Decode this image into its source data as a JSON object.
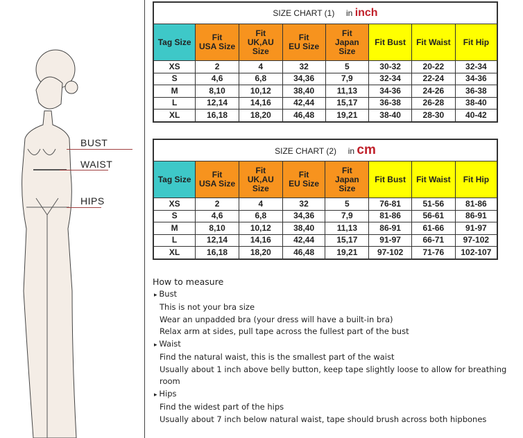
{
  "figure": {
    "labels": {
      "bust": "BUST",
      "waist": "WAIST",
      "hips": "HIPS"
    }
  },
  "chart1": {
    "title": "SIZE CHART (1)",
    "unit_prefix": "in",
    "unit": "inch",
    "headers": [
      "Tag Size",
      "Fit\nUSA Size",
      "Fit\nUK,AU\nSize",
      "Fit\nEU Size",
      "Fit\nJapan\nSize",
      "Fit Bust",
      "Fit Waist",
      "Fit Hip"
    ],
    "rows": [
      [
        "XS",
        "2",
        "4",
        "32",
        "5",
        "30-32",
        "20-22",
        "32-34"
      ],
      [
        "S",
        "4,6",
        "6,8",
        "34,36",
        "7,9",
        "32-34",
        "22-24",
        "34-36"
      ],
      [
        "M",
        "8,10",
        "10,12",
        "38,40",
        "11,13",
        "34-36",
        "24-26",
        "36-38"
      ],
      [
        "L",
        "12,14",
        "14,16",
        "42,44",
        "15,17",
        "36-38",
        "26-28",
        "38-40"
      ],
      [
        "XL",
        "16,18",
        "18,20",
        "46,48",
        "19,21",
        "38-40",
        "28-30",
        "40-42"
      ]
    ]
  },
  "chart2": {
    "title": "SIZE CHART (2)",
    "unit_prefix": "in",
    "unit": "cm",
    "headers": [
      "Tag Size",
      "Fit\nUSA Size",
      "Fit\nUK,AU\nSize",
      "Fit\nEU Size",
      "Fit\nJapan\nSize",
      "Fit Bust",
      "Fit Waist",
      "Fit Hip"
    ],
    "rows": [
      [
        "XS",
        "2",
        "4",
        "32",
        "5",
        "76-81",
        "51-56",
        "81-86"
      ],
      [
        "S",
        "4,6",
        "6,8",
        "34,36",
        "7,9",
        "81-86",
        "56-61",
        "86-91"
      ],
      [
        "M",
        "8,10",
        "10,12",
        "38,40",
        "11,13",
        "86-91",
        "61-66",
        "91-97"
      ],
      [
        "L",
        "12,14",
        "14,16",
        "42,44",
        "15,17",
        "91-97",
        "66-71",
        "97-102"
      ],
      [
        "XL",
        "16,18",
        "18,20",
        "46,48",
        "19,21",
        "97-102",
        "71-76",
        "102-107"
      ]
    ]
  },
  "colors": {
    "tag": "#3ec8c8",
    "fit": "#f7931e",
    "measure": "#ffff00",
    "unit": "#c0202a"
  },
  "howto": {
    "title": "How to measure",
    "sections": [
      {
        "name": "Bust",
        "lines": [
          "This is not your bra size",
          "Wear an unpadded bra (your dress will have a built-in bra)",
          "Relax arm at sides, pull tape across the fullest part of the bust"
        ]
      },
      {
        "name": "Waist",
        "lines": [
          "Find the natural waist, this is the smallest part of the waist",
          "Usually about 1 inch above belly button, keep tape slightly loose to allow for breathing room"
        ]
      },
      {
        "name": "Hips",
        "lines": [
          "Find the widest part of the hips",
          "Usually about 7 inch below natural waist, tape should brush across both hipbones"
        ]
      }
    ]
  }
}
